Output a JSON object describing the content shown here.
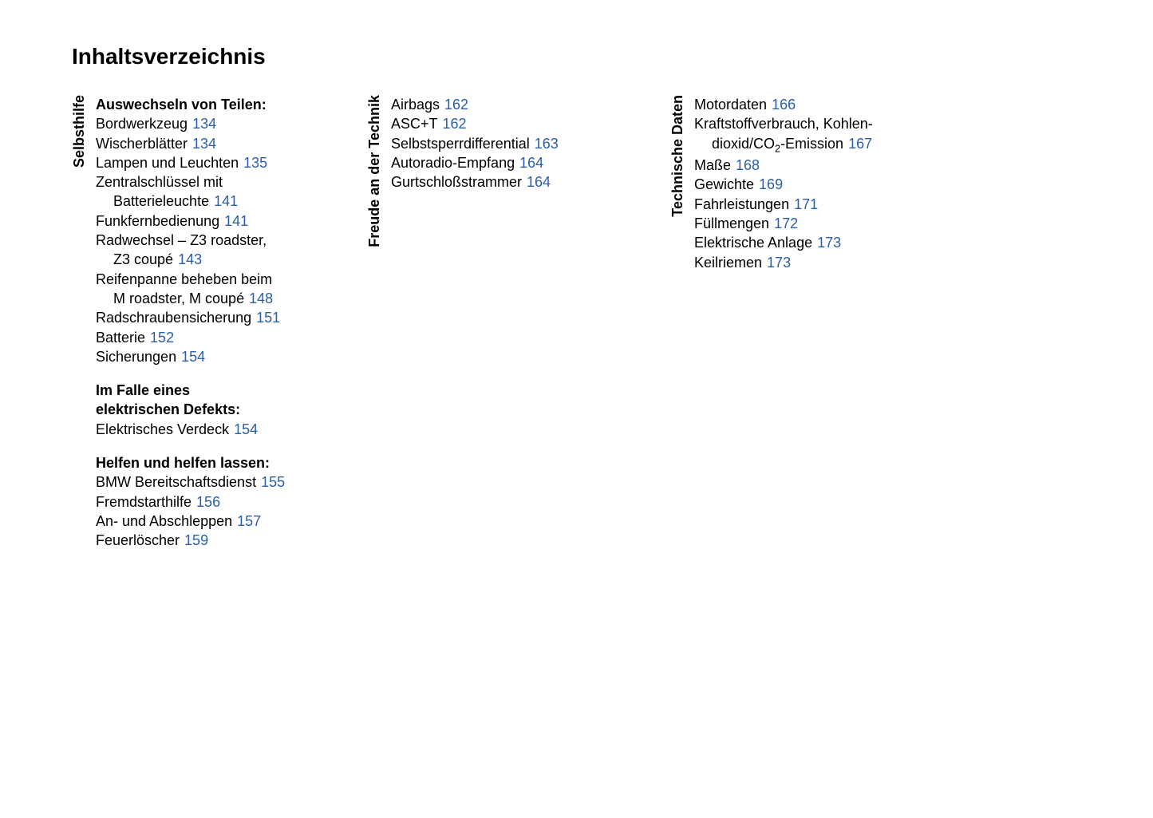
{
  "title": "Inhaltsverzeichnis",
  "link_color": "#2a5fa8",
  "text_color": "#000000",
  "sections": [
    {
      "label": "Selbsthilfe",
      "groups": [
        {
          "heading": "Auswechseln von Teilen:",
          "entries": [
            {
              "text": "Bordwerkzeug",
              "page": "134"
            },
            {
              "text": "Wischerblätter",
              "page": "134"
            },
            {
              "text": "Lampen und Leuchten",
              "page": "135"
            },
            {
              "text": "Zentralschlüssel mit",
              "cont": "Batterieleuchte",
              "page": "141"
            },
            {
              "text": "Funkfernbedienung",
              "page": "141"
            },
            {
              "text": "Radwechsel – Z3 roadster,",
              "cont": "Z3 coupé",
              "page": "143"
            },
            {
              "text": "Reifenpanne beheben beim",
              "cont": "M roadster, M coupé",
              "page": "148"
            },
            {
              "text": "Radschraubensicherung",
              "page": "151"
            },
            {
              "text": "Batterie",
              "page": "152"
            },
            {
              "text": "Sicherungen",
              "page": "154"
            }
          ]
        },
        {
          "heading": "Im Falle eines",
          "heading2": "elektrischen Defekts:",
          "entries": [
            {
              "text": "Elektrisches Verdeck",
              "page": "154"
            }
          ]
        },
        {
          "heading": "Helfen und helfen lassen:",
          "entries": [
            {
              "text": "BMW Bereitschaftsdienst",
              "page": "155"
            },
            {
              "text": "Fremdstarthilfe",
              "page": "156"
            },
            {
              "text": "An- und Abschleppen",
              "page": "157"
            },
            {
              "text": "Feuerlöscher",
              "page": "159"
            }
          ]
        }
      ]
    },
    {
      "label": "Freude an der Technik",
      "groups": [
        {
          "entries": [
            {
              "text": "Airbags",
              "page": "162"
            },
            {
              "text": "ASC+T",
              "page": "162"
            },
            {
              "text": "Selbstsperrdifferential",
              "page": "163"
            },
            {
              "text": "Autoradio-Empfang",
              "page": "164"
            },
            {
              "text": "Gurtschloßstrammer",
              "page": "164"
            }
          ]
        }
      ]
    },
    {
      "label": "Technische Daten",
      "groups": [
        {
          "entries": [
            {
              "text": "Motordaten",
              "page": "166"
            },
            {
              "text": "Kraftstoffverbrauch, Kohlen-",
              "cont_html": "dioxid/CO<sub>2</sub>-Emission",
              "page": "167"
            },
            {
              "text": "Maße",
              "page": "168"
            },
            {
              "text": "Gewichte",
              "page": "169"
            },
            {
              "text": "Fahrleistungen",
              "page": "171"
            },
            {
              "text": "Füllmengen",
              "page": "172"
            },
            {
              "text": "Elektrische Anlage",
              "page": "173"
            },
            {
              "text": "Keilriemen",
              "page": "173"
            }
          ]
        }
      ]
    }
  ]
}
